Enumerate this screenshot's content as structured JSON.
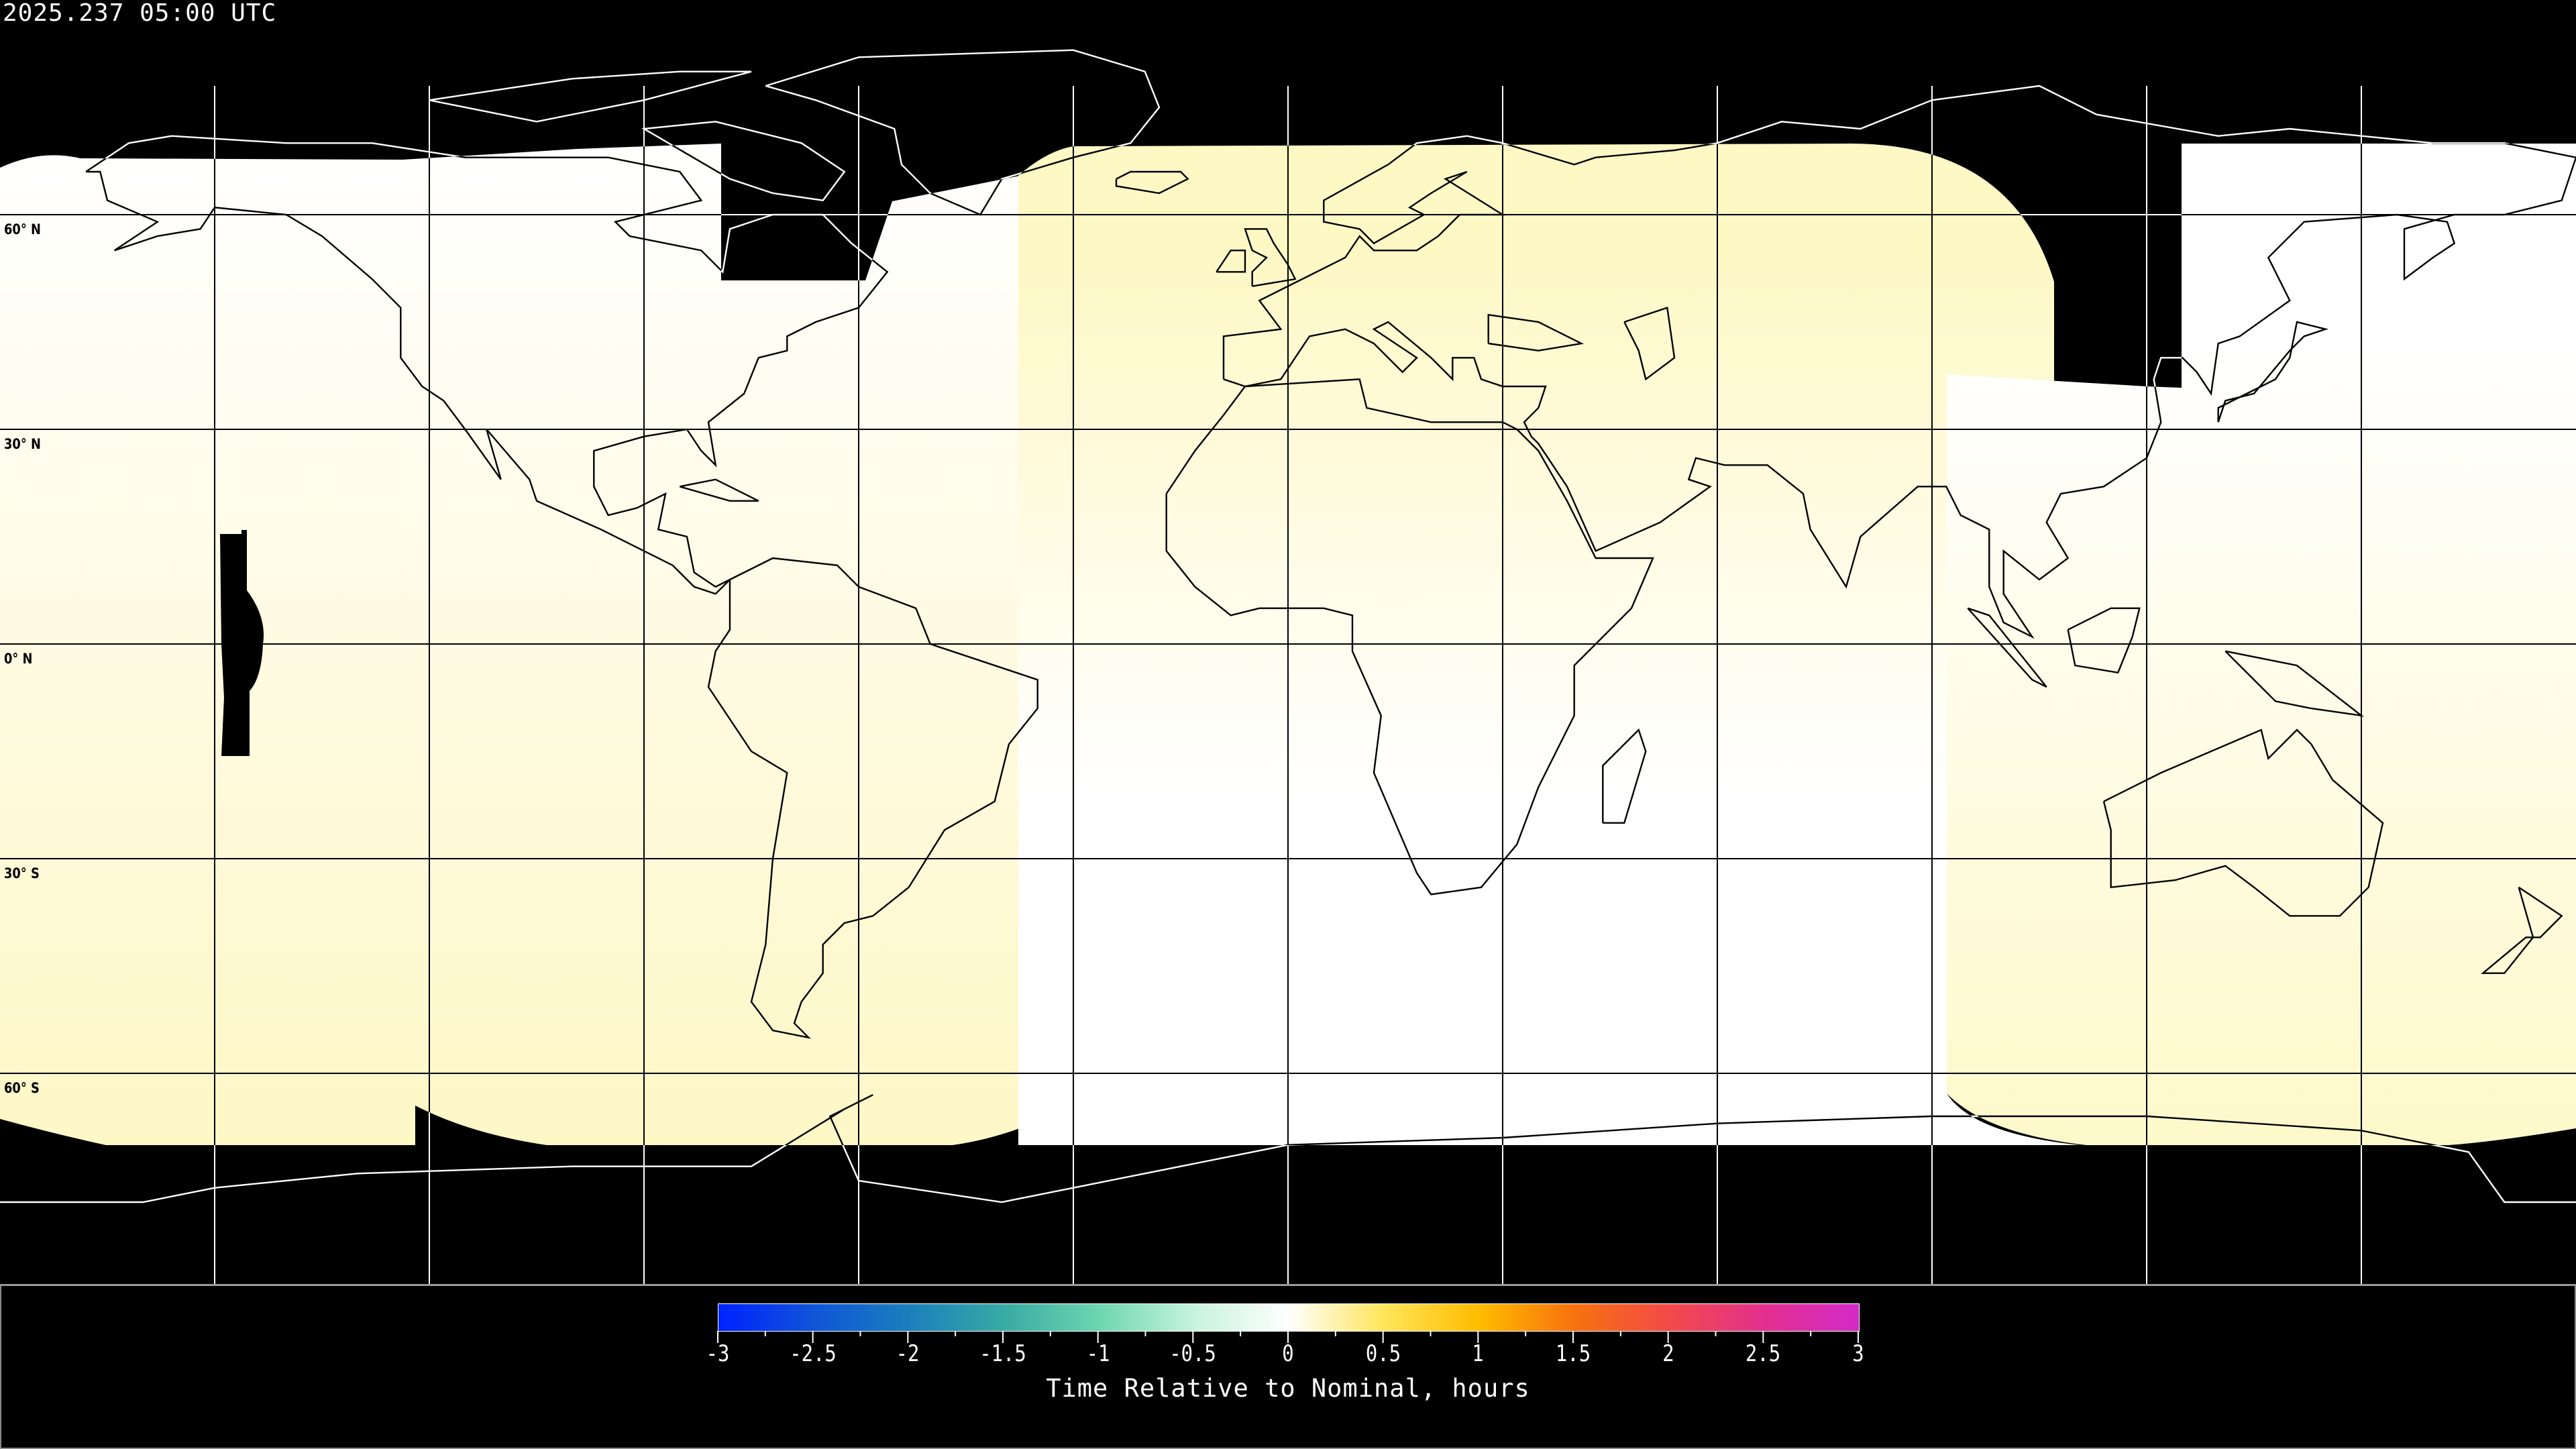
{
  "title": "2025.237 05:00 UTC",
  "map": {
    "projection": "equirectangular",
    "lon_range": [
      -180,
      180
    ],
    "lat_range": [
      -90,
      90
    ],
    "gridline_spacing_deg": 30,
    "lat_labels": [
      {
        "lat": 60,
        "text": "60° N"
      },
      {
        "lat": 30,
        "text": "30° N"
      },
      {
        "lat": 0,
        "text": "0° N"
      },
      {
        "lat": -30,
        "text": "30° S"
      },
      {
        "lat": -60,
        "text": "60° S"
      }
    ],
    "no_data_color": "#000000",
    "coastline_color_on_data": "#000000",
    "coastline_color_on_nodata": "#ffffff"
  },
  "colorbar": {
    "title": "Time Relative to Nominal, hours",
    "min": -3,
    "max": 3,
    "tick_labels": [
      "-3",
      "-2.5",
      "-2",
      "-1.5",
      "-1",
      "-0.5",
      "0",
      "0.5",
      "1",
      "1.5",
      "2",
      "2.5",
      "3"
    ],
    "stops": [
      {
        "value": -3,
        "color": "#0022ff"
      },
      {
        "value": -2.5,
        "color": "#0f55d8"
      },
      {
        "value": -2,
        "color": "#1a7fbc"
      },
      {
        "value": -1.5,
        "color": "#38aaa4"
      },
      {
        "value": -1,
        "color": "#6cd6b0"
      },
      {
        "value": -0.5,
        "color": "#c6f3dc"
      },
      {
        "value": 0,
        "color": "#ffffff"
      },
      {
        "value": 0.5,
        "color": "#ffe55a"
      },
      {
        "value": 1,
        "color": "#ffbc00"
      },
      {
        "value": 1.5,
        "color": "#f7720e"
      },
      {
        "value": 2,
        "color": "#f24a48"
      },
      {
        "value": 2.5,
        "color": "#e3308e"
      },
      {
        "value": 3,
        "color": "#d22ac8"
      }
    ]
  },
  "regions": {
    "west_top_color": "#ffffff",
    "west_bottom_color": "#fef7c6",
    "central_top_color": "#fef8c4",
    "central_bottom_color": "#ffffff",
    "east_top_color": "#ffffff",
    "east_bottom_color": "#fef9ca"
  }
}
